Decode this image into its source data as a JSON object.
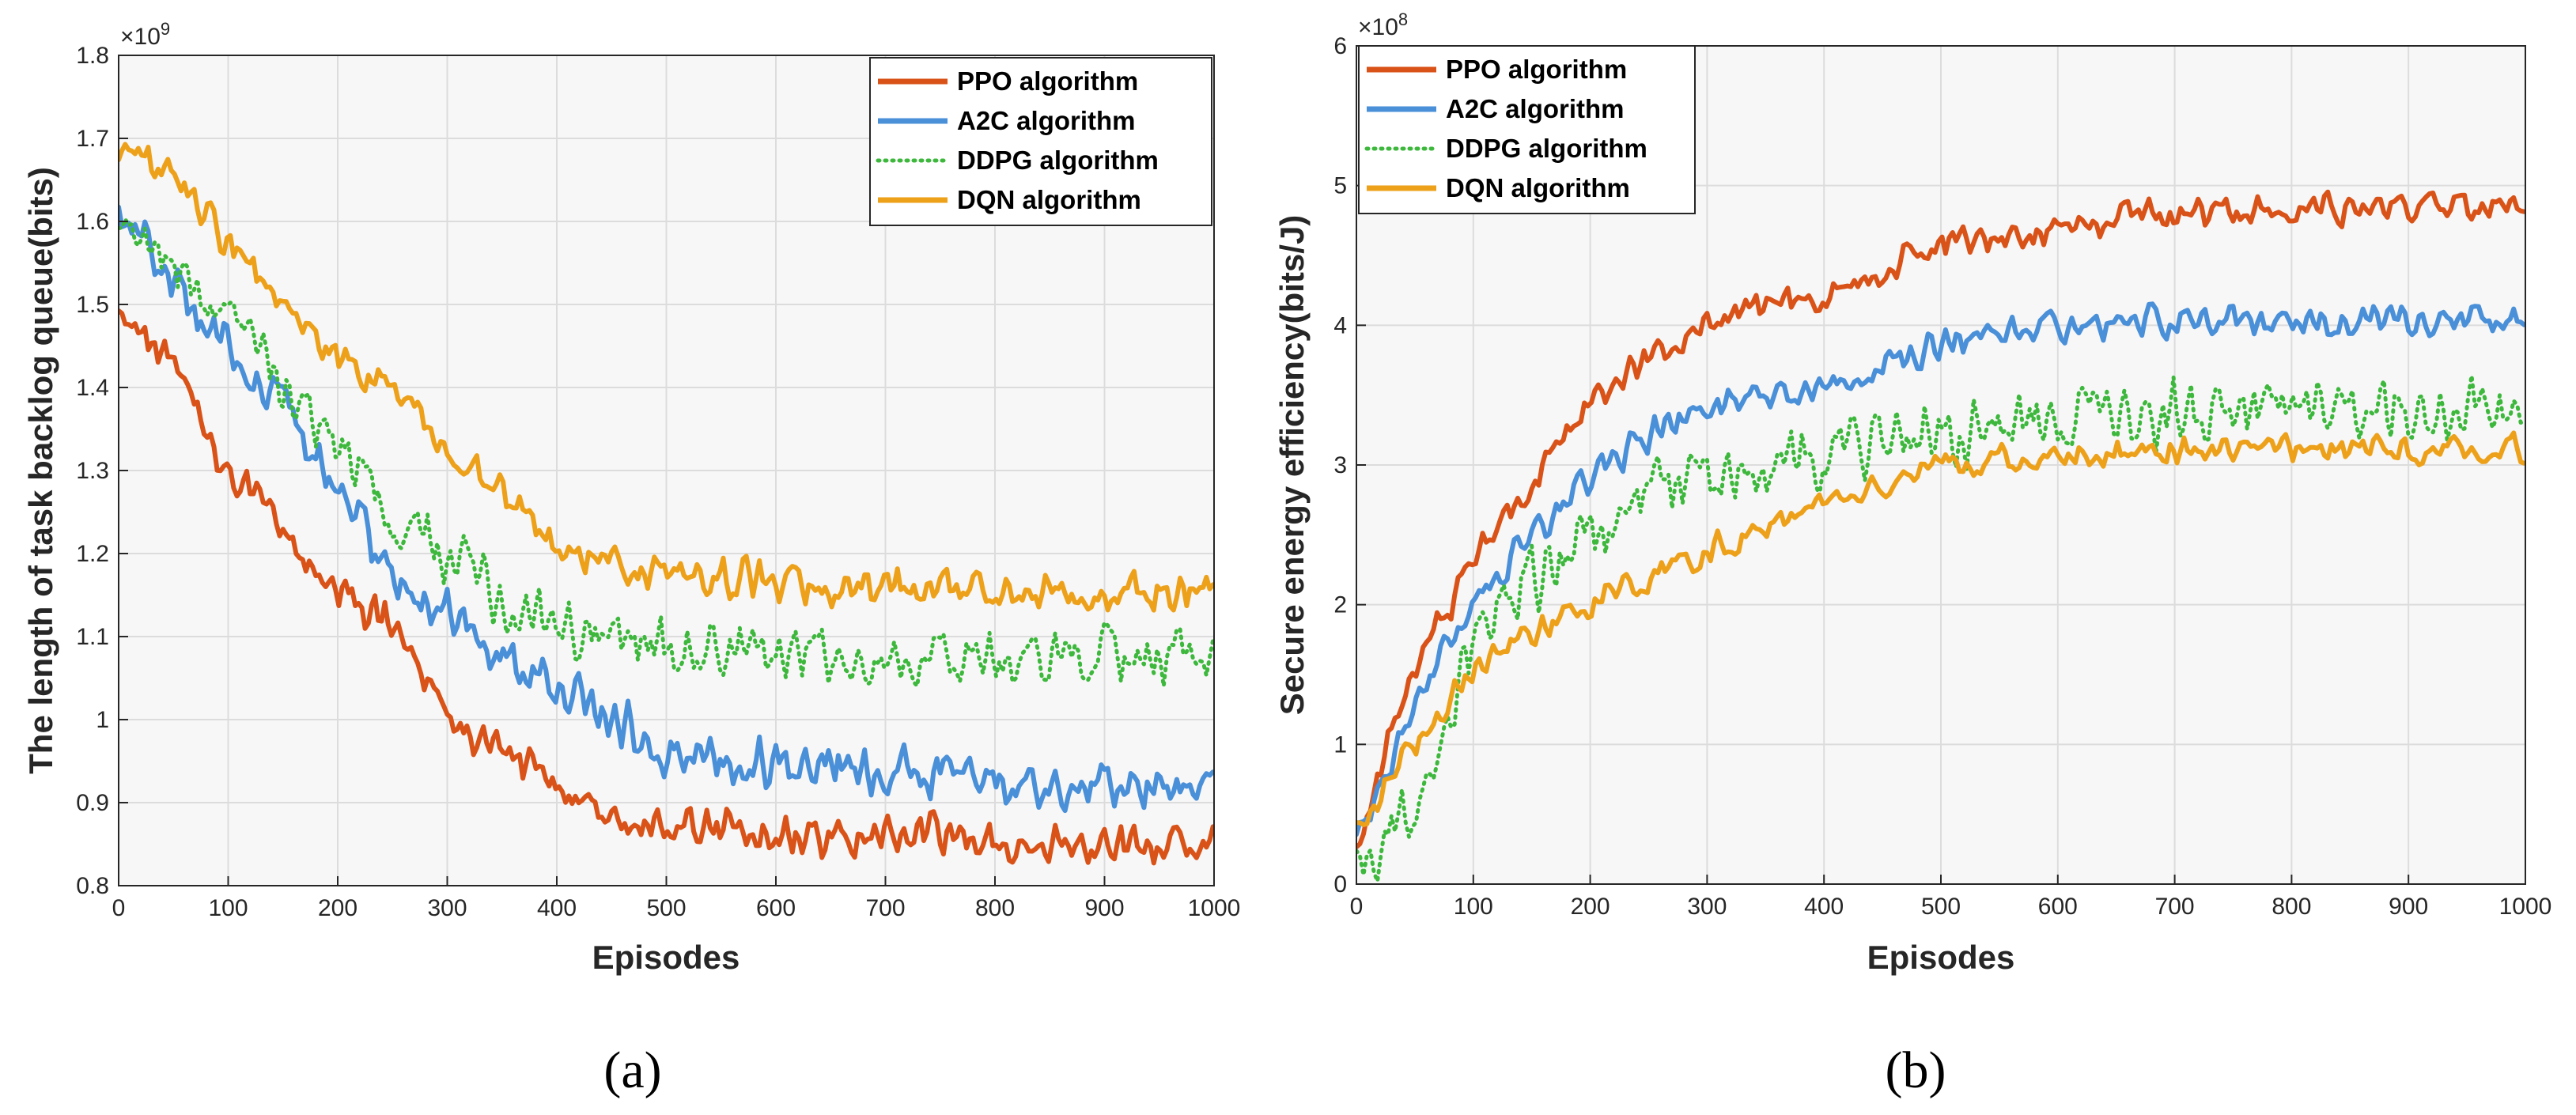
{
  "chart_data": [
    {
      "type": "line",
      "panel_caption": "(a)",
      "xlabel": "Episodes",
      "ylabel": "The length of task backlog queue(bits)",
      "exponent": {
        "base": "×10",
        "power": "9"
      },
      "xlim": [
        0,
        1000
      ],
      "ylim": [
        0.8,
        1.8
      ],
      "xticks": [
        0,
        100,
        200,
        300,
        400,
        500,
        600,
        700,
        800,
        900,
        1000
      ],
      "yticks": [
        0.8,
        0.9,
        1,
        1.1,
        1.2,
        1.3,
        1.4,
        1.5,
        1.6,
        1.7,
        1.8
      ],
      "grid": true,
      "legend_position": "top-right",
      "x": [
        0,
        50,
        100,
        150,
        200,
        250,
        300,
        350,
        400,
        450,
        500,
        550,
        600,
        650,
        700,
        750,
        800,
        850,
        900,
        950,
        1000
      ],
      "series": [
        {
          "name": "PPO algorithm",
          "color": "#D95319",
          "style": "solid",
          "noise": 0.03,
          "values": [
            1.5,
            1.42,
            1.3,
            1.22,
            1.16,
            1.11,
            1.0,
            0.96,
            0.92,
            0.88,
            0.87,
            0.87,
            0.86,
            0.86,
            0.86,
            0.86,
            0.85,
            0.85,
            0.85,
            0.85,
            0.85
          ]
        },
        {
          "name": "A2C algorithm",
          "color": "#4A90D9",
          "style": "solid",
          "noise": 0.035,
          "values": [
            1.62,
            1.52,
            1.45,
            1.38,
            1.28,
            1.17,
            1.13,
            1.08,
            1.04,
            1.0,
            0.96,
            0.955,
            0.95,
            0.945,
            0.94,
            0.935,
            0.93,
            0.925,
            0.92,
            0.92,
            0.92
          ]
        },
        {
          "name": "DDPG algorithm",
          "color": "#3DB83D",
          "style": "dotted",
          "noise": 0.045,
          "values": [
            1.6,
            1.55,
            1.48,
            1.4,
            1.32,
            1.24,
            1.2,
            1.14,
            1.11,
            1.1,
            1.09,
            1.09,
            1.08,
            1.08,
            1.08,
            1.08,
            1.08,
            1.08,
            1.08,
            1.08,
            1.08
          ]
        },
        {
          "name": "DQN algorithm",
          "color": "#EDA11A",
          "style": "solid",
          "noise": 0.03,
          "values": [
            1.68,
            1.65,
            1.58,
            1.5,
            1.44,
            1.4,
            1.33,
            1.27,
            1.21,
            1.19,
            1.18,
            1.17,
            1.17,
            1.16,
            1.16,
            1.16,
            1.16,
            1.15,
            1.15,
            1.16,
            1.16
          ]
        }
      ]
    },
    {
      "type": "line",
      "panel_caption": "(b)",
      "xlabel": "Episodes",
      "ylabel": "Secure energy efficiency(bits/J)",
      "exponent": {
        "base": "×10",
        "power": "8"
      },
      "xlim": [
        0,
        1000
      ],
      "ylim": [
        0,
        6
      ],
      "xticks": [
        0,
        100,
        200,
        300,
        400,
        500,
        600,
        700,
        800,
        900,
        1000
      ],
      "yticks": [
        0,
        1,
        2,
        3,
        4,
        5,
        6
      ],
      "grid": true,
      "legend_position": "top-left",
      "x": [
        0,
        50,
        100,
        150,
        200,
        250,
        300,
        350,
        400,
        450,
        500,
        550,
        600,
        650,
        700,
        750,
        800,
        850,
        900,
        950,
        1000
      ],
      "series": [
        {
          "name": "PPO algorithm",
          "color": "#D95319",
          "style": "solid",
          "noise": 0.15,
          "values": [
            0.3,
            1.6,
            2.3,
            2.9,
            3.4,
            3.8,
            4.0,
            4.1,
            4.2,
            4.4,
            4.6,
            4.65,
            4.7,
            4.75,
            4.78,
            4.8,
            4.82,
            4.83,
            4.84,
            4.84,
            4.85
          ]
        },
        {
          "name": "A2C algorithm",
          "color": "#4A90D9",
          "style": "solid",
          "noise": 0.14,
          "values": [
            0.3,
            1.3,
            2.0,
            2.5,
            2.9,
            3.2,
            3.4,
            3.45,
            3.55,
            3.7,
            3.85,
            3.95,
            4.0,
            4.02,
            4.03,
            4.03,
            4.03,
            4.03,
            4.03,
            4.03,
            4.03
          ]
        },
        {
          "name": "DDPG algorithm",
          "color": "#3DB83D",
          "style": "dotted",
          "noise": 0.32,
          "values": [
            0.1,
            0.6,
            1.7,
            2.2,
            2.5,
            2.8,
            2.95,
            3.0,
            3.05,
            3.1,
            3.2,
            3.25,
            3.3,
            3.35,
            3.37,
            3.38,
            3.4,
            3.4,
            3.42,
            3.42,
            3.42
          ]
        },
        {
          "name": "DQN algorithm",
          "color": "#EDA11A",
          "style": "solid",
          "noise": 0.13,
          "values": [
            0.4,
            1.0,
            1.5,
            1.8,
            2.0,
            2.2,
            2.4,
            2.55,
            2.7,
            2.85,
            3.0,
            3.03,
            3.05,
            3.07,
            3.1,
            3.1,
            3.12,
            3.12,
            3.12,
            3.12,
            3.12
          ]
        }
      ]
    }
  ]
}
